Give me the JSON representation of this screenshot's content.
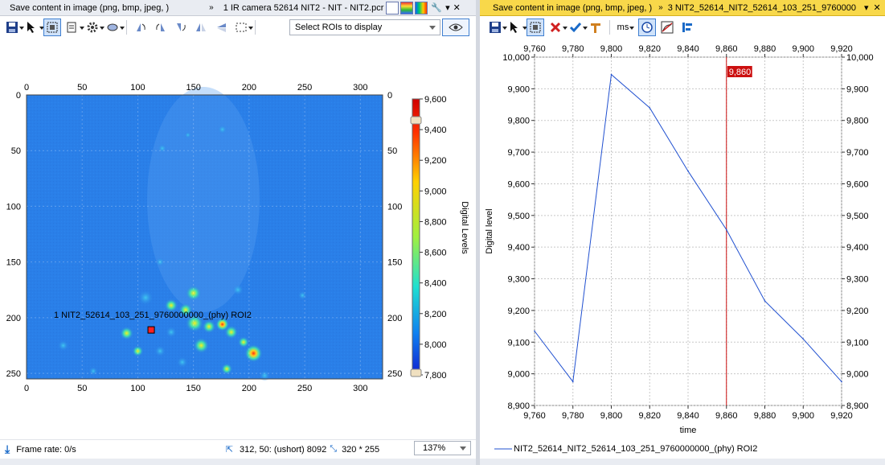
{
  "left_window": {
    "title_save_hint": "Save content in image (png, bmp, jpeg, )",
    "title_camera": "1 IR camera 52614 NIT2 - NIT - NIT2.pcr",
    "roi_select_placeholder": "Select ROIs to display",
    "roi_label": "1 NIT2_52614_103_251_9760000000_(phy) ROI2",
    "x_ticks": [
      "0",
      "50",
      "100",
      "150",
      "200",
      "250",
      "300"
    ],
    "y_ticks": [
      "0",
      "50",
      "100",
      "150",
      "200",
      "250"
    ],
    "colorbar": {
      "ticks": [
        "9,600",
        "9,400",
        "9,200",
        "9,000",
        "8,800",
        "8,600",
        "8,400",
        "8,200",
        "8,000",
        "7,800"
      ],
      "label": "Digital Levels",
      "min": 7800,
      "max": 9600
    },
    "image_size": [
      320,
      255
    ],
    "status": {
      "frame_rate": "Frame rate: 0/s",
      "pixel_readout": "312, 50: (ushort) 8092",
      "dimensions": "320 * 255",
      "zoom": "137%"
    },
    "colors": {
      "image_background": "#2a7fe8",
      "roi_marker": "#ff2020"
    }
  },
  "right_window": {
    "title_save_hint": "Save content in image (png, bmp, jpeg, )",
    "title_plot": "3 NIT2_52614_NIT2_52614_103_251_9760000",
    "units_label": "ms",
    "chart_data": {
      "type": "line",
      "xlabel": "time",
      "ylabel": "Digital level",
      "xlim": [
        9760,
        9920
      ],
      "ylim": [
        8900,
        10000
      ],
      "x_ticks": [
        "9,760",
        "9,780",
        "9,800",
        "9,820",
        "9,840",
        "9,860",
        "9,880",
        "9,900",
        "9,920"
      ],
      "y_ticks": [
        "10,000",
        "9,900",
        "9,800",
        "9,700",
        "9,600",
        "9,500",
        "9,400",
        "9,300",
        "9,200",
        "9,100",
        "9,000",
        "8,900"
      ],
      "series": [
        {
          "name": "NIT2_52614_NIT2_52614_103_251_9760000000_(phy) ROI2",
          "color": "#2050d0",
          "x": [
            9760,
            9780,
            9800,
            9820,
            9840,
            9860,
            9880,
            9900,
            9920
          ],
          "y": [
            9135,
            8975,
            9945,
            9840,
            9640,
            9455,
            9230,
            9110,
            8975
          ]
        }
      ],
      "cursor": {
        "x": 9860,
        "label": "9,860",
        "color": "#cc1010"
      },
      "grid": true,
      "legend": "bottom"
    }
  }
}
